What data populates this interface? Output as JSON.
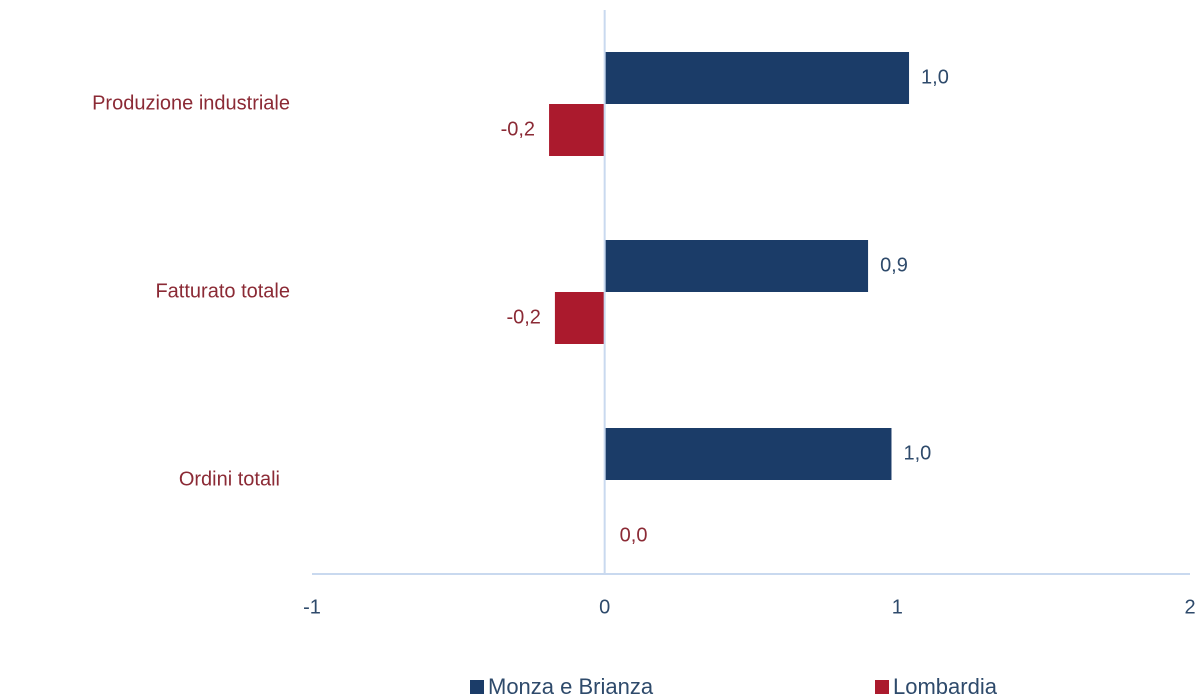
{
  "chart_data": {
    "type": "bar",
    "orientation": "horizontal",
    "categories": [
      "Produzione industriale",
      "Fatturato totale",
      "Ordini totali"
    ],
    "series": [
      {
        "name": "Monza e Brianza",
        "color": "#1b3c68",
        "values": [
          1.04,
          0.9,
          0.98
        ],
        "value_labels": [
          "1,0",
          "0,9",
          "1,0"
        ]
      },
      {
        "name": "Lombardia",
        "color": "#ab1a2d",
        "values": [
          -0.19,
          -0.17,
          0.0
        ],
        "value_labels": [
          "-0,2",
          "-0,2",
          "0,0"
        ]
      }
    ],
    "xlim": [
      -1,
      2
    ],
    "xticks": [
      -1,
      0,
      1,
      2
    ],
    "legend": "bottom"
  }
}
